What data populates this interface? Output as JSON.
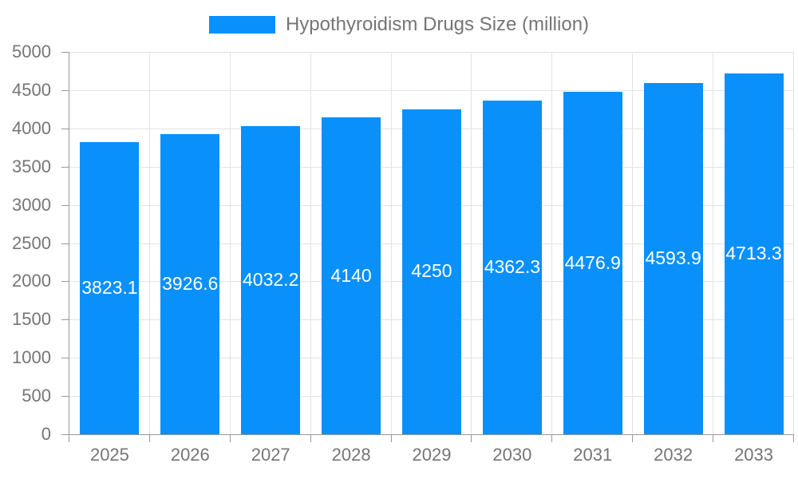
{
  "legend": {
    "label": "Hypothyroidism Drugs Size (million)"
  },
  "chart_data": {
    "type": "bar",
    "title": "Hypothyroidism Drugs Size (million)",
    "categories": [
      "2025",
      "2026",
      "2027",
      "2028",
      "2029",
      "2030",
      "2031",
      "2032",
      "2033"
    ],
    "values": [
      3823.1,
      3926.6,
      4032.2,
      4140,
      4250,
      4362.3,
      4476.9,
      4593.9,
      4713.3
    ],
    "bar_labels": [
      "3823.1",
      "3926.6",
      "4032.2",
      "4140",
      "4250",
      "4362.3",
      "4476.9",
      "4593.9",
      "4713.3"
    ],
    "xlabel": "",
    "ylabel": "",
    "ylim": [
      0,
      5000
    ],
    "ytick_step": 500,
    "ytick_labels": [
      "0",
      "500",
      "1000",
      "1500",
      "2000",
      "2500",
      "3000",
      "3500",
      "4000",
      "4500",
      "5000"
    ],
    "grid": true,
    "legend_position": "top",
    "value_labels_position": "bar-center",
    "colors": {
      "bar": "#0a90fb",
      "axis_line": "#999999",
      "gridline": "#e3e3e3",
      "tick_label": "#757575",
      "value_label": "#ffffff",
      "background": "#ffffff"
    }
  }
}
